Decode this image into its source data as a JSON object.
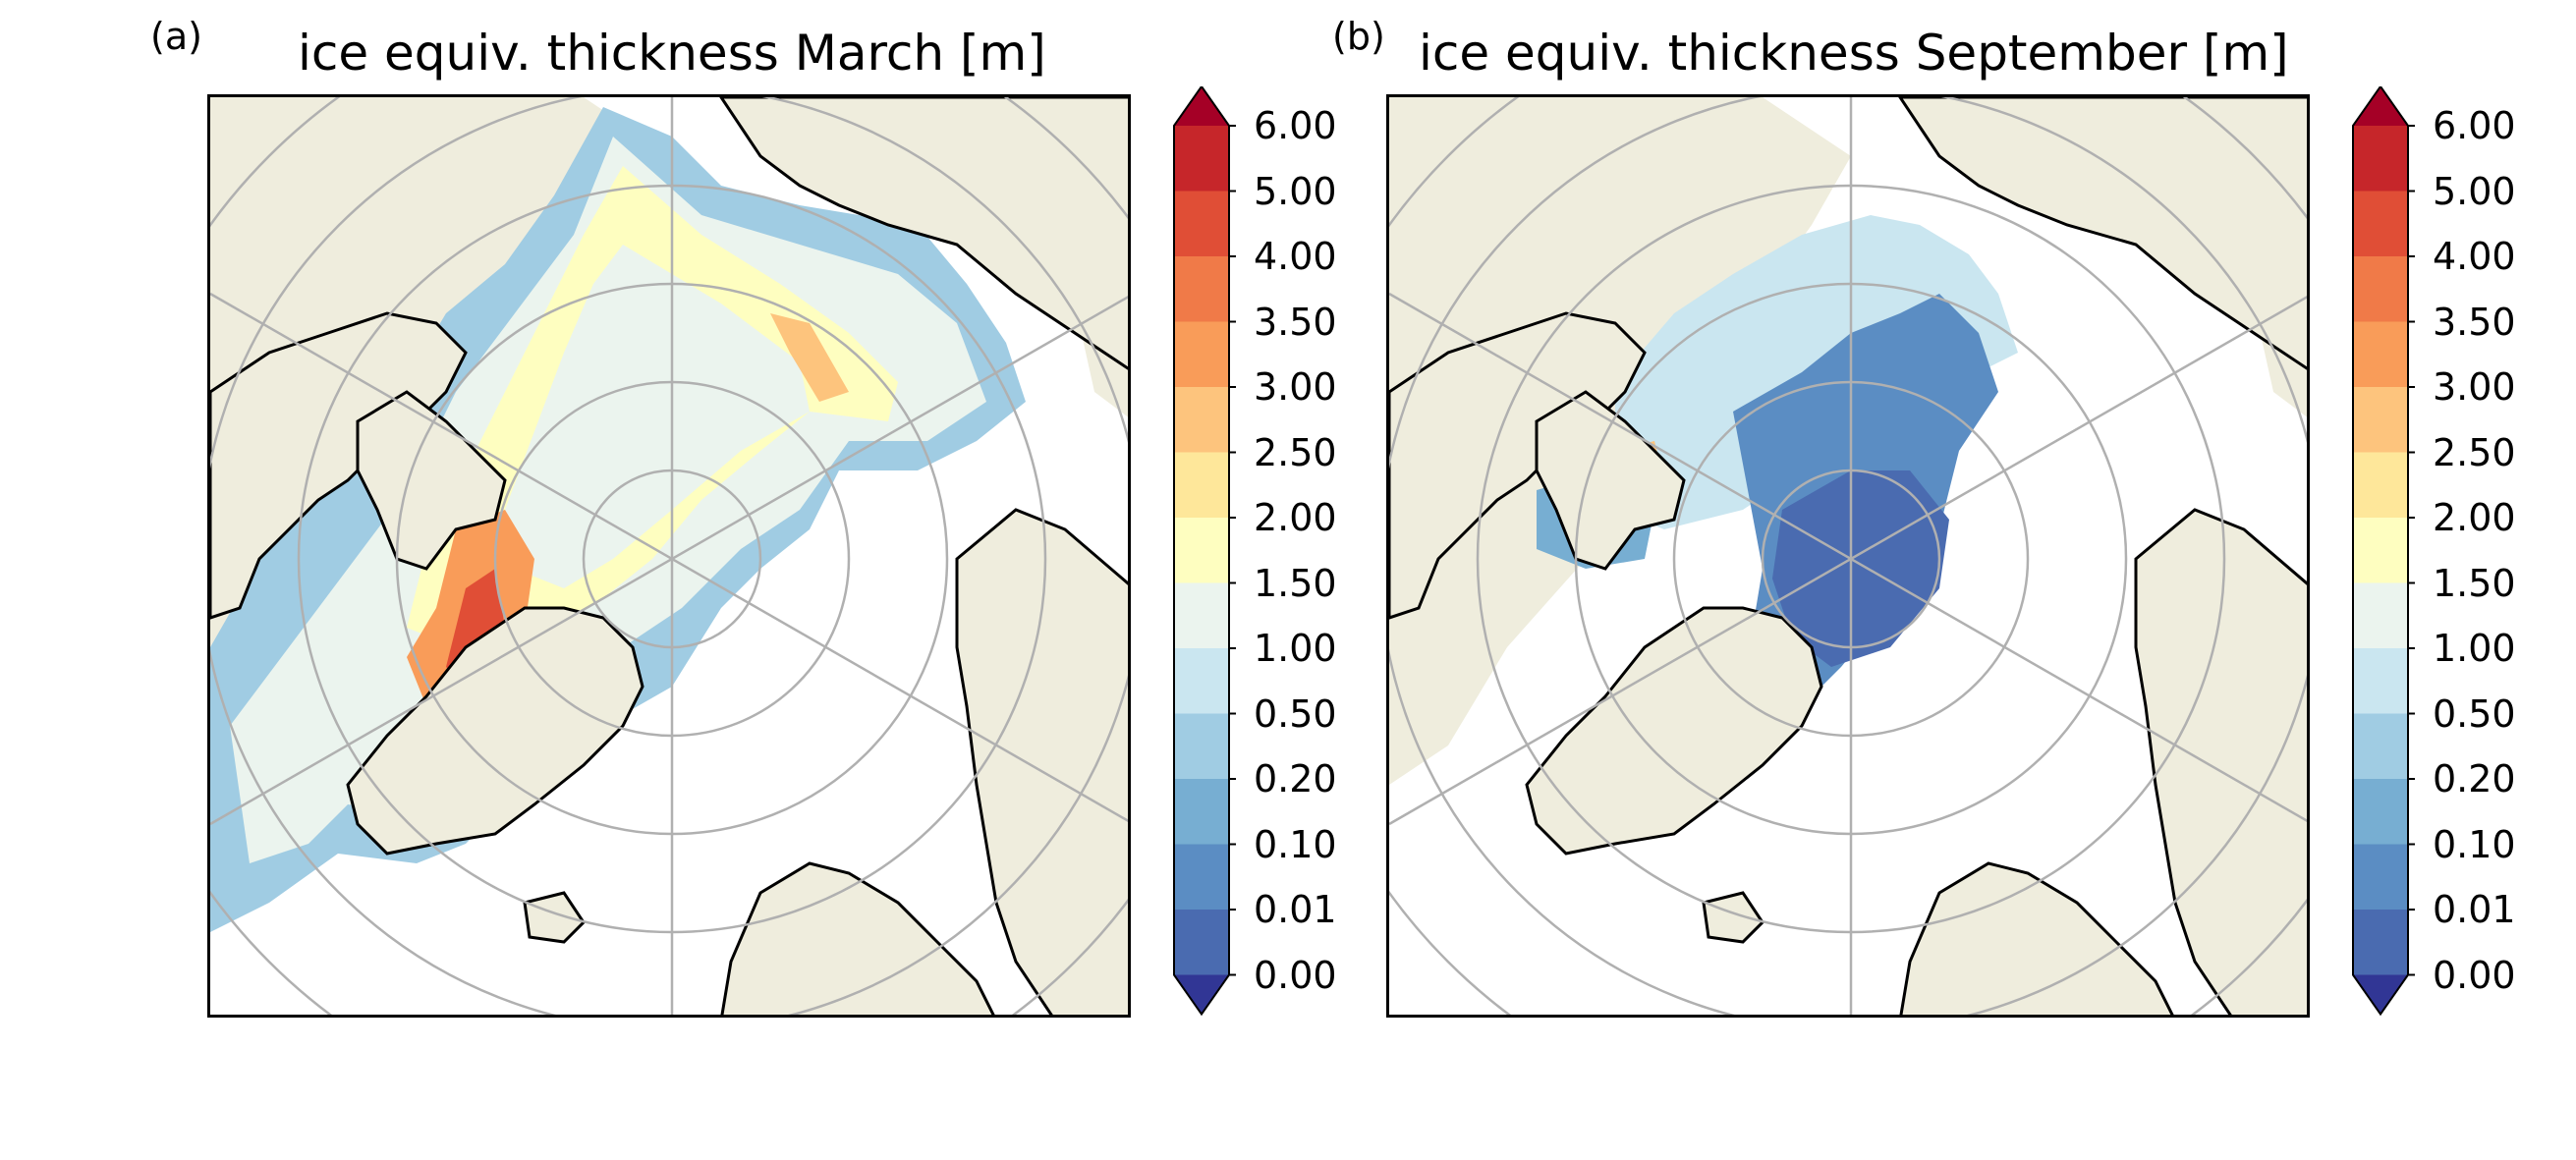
{
  "panels": [
    {
      "letter": "(a)",
      "title": "ice equiv. thickness March [m]",
      "month": "March"
    },
    {
      "letter": "(b)",
      "title": "ice equiv. thickness September [m]",
      "month": "September"
    }
  ],
  "colorbar": {
    "ticks": [
      "0.00",
      "0.01",
      "0.10",
      "0.20",
      "0.50",
      "1.00",
      "1.50",
      "2.00",
      "2.50",
      "3.00",
      "3.50",
      "4.00",
      "5.00",
      "6.00"
    ],
    "under_color": "#313695",
    "over_color": "#a50026",
    "colors": [
      "#4a6bb0",
      "#5b8dc3",
      "#77aed2",
      "#a0cce3",
      "#cae6f0",
      "#ebf4ee",
      "#fefec0",
      "#fee79a",
      "#fdc47d",
      "#f99c59",
      "#f07a48",
      "#e04e36",
      "#c6262a"
    ]
  },
  "map_colors": {
    "land": "#efeddd",
    "ocean": "#ffffff",
    "coast": "#000000",
    "grid": "#b0b0b0"
  }
}
